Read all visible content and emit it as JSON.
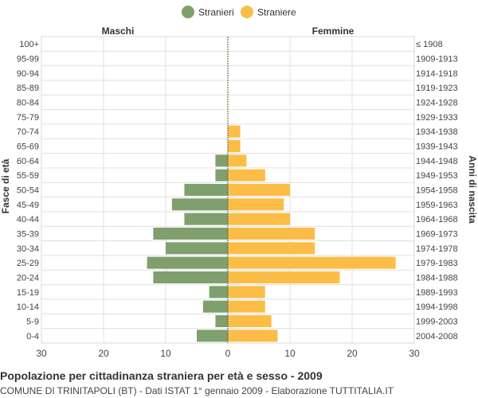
{
  "chart_data": {
    "type": "bar",
    "orientation": "horizontal-pyramid",
    "title": "Popolazione per cittadinanza straniera per età e sesso - 2009",
    "subtitle": "COMUNE DI TRINITAPOLI (BT) - Dati ISTAT 1° gennaio 2009 - Elaborazione TUTTITALIA.IT",
    "ylabel_left": "Fasce di età",
    "ylabel_right": "Anni di nascita",
    "side_labels": {
      "left": "Maschi",
      "right": "Femmine"
    },
    "legend": {
      "position": "top-center",
      "items": [
        "Stranieri",
        "Straniere"
      ]
    },
    "colors": {
      "males": "#7fa06e",
      "females": "#fcbd47",
      "grid": "#e0e0e0",
      "center_line": "#5a5a2a"
    },
    "grid": true,
    "xlim": [
      -30,
      30
    ],
    "xticks": [
      -30,
      -20,
      -10,
      0,
      10,
      20,
      30
    ],
    "xtick_labels": [
      "30",
      "20",
      "10",
      "0",
      "10",
      "20",
      "30"
    ],
    "categories": [
      "100+",
      "95-99",
      "90-94",
      "85-89",
      "80-84",
      "75-79",
      "70-74",
      "65-69",
      "60-64",
      "55-59",
      "50-54",
      "45-49",
      "40-44",
      "35-39",
      "30-34",
      "25-29",
      "20-24",
      "15-19",
      "10-14",
      "5-9",
      "0-4"
    ],
    "birth_years": [
      "≤ 1908",
      "1909-1913",
      "1914-1918",
      "1919-1923",
      "1924-1928",
      "1929-1933",
      "1934-1938",
      "1939-1943",
      "1944-1948",
      "1949-1953",
      "1954-1958",
      "1959-1963",
      "1964-1968",
      "1969-1973",
      "1974-1978",
      "1979-1983",
      "1984-1988",
      "1989-1993",
      "1994-1998",
      "1999-2003",
      "2004-2008"
    ],
    "series": [
      {
        "name": "Stranieri",
        "values": [
          0,
          0,
          0,
          0,
          0,
          0,
          0,
          0,
          2,
          2,
          7,
          9,
          7,
          12,
          10,
          13,
          12,
          3,
          4,
          2,
          5
        ]
      },
      {
        "name": "Straniere",
        "values": [
          0,
          0,
          0,
          0,
          0,
          0,
          2,
          2,
          3,
          6,
          10,
          9,
          10,
          14,
          14,
          27,
          18,
          6,
          6,
          7,
          8
        ]
      }
    ]
  }
}
